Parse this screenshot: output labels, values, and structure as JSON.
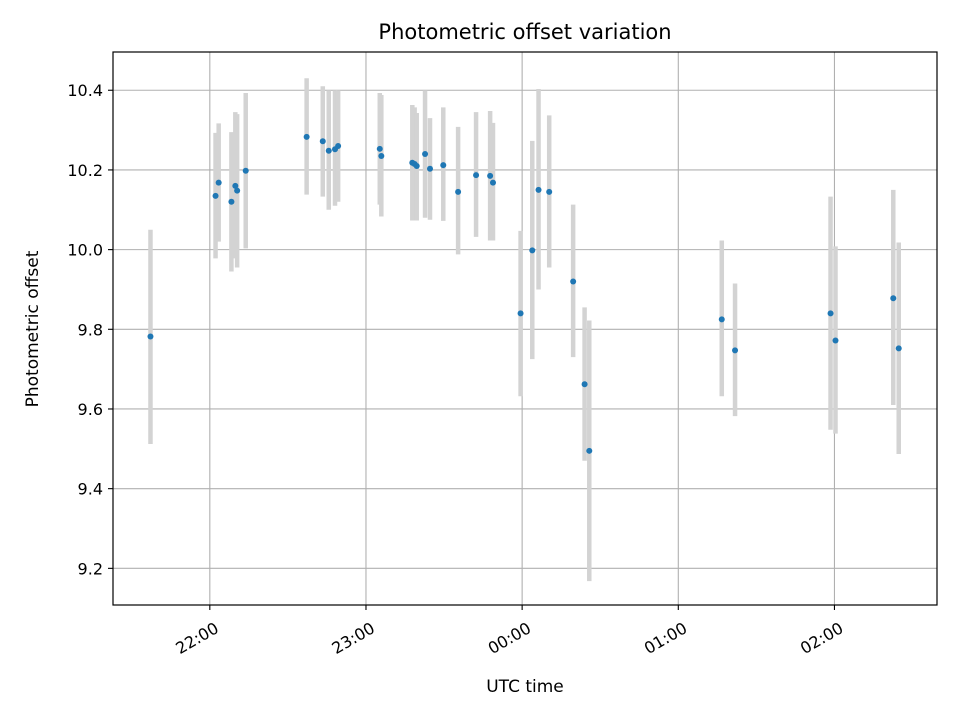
{
  "chart_data": {
    "type": "scatter",
    "title": "Photometric offset variation",
    "xlabel": "UTC time",
    "ylabel": "Photometric offset",
    "x_ticks": [
      {
        "t": 1320,
        "label": "22:00"
      },
      {
        "t": 1380,
        "label": "23:00"
      },
      {
        "t": 1440,
        "label": "00:00"
      },
      {
        "t": 1500,
        "label": "01:00"
      },
      {
        "t": 1560,
        "label": "02:00"
      }
    ],
    "y_ticks": [
      "9.2",
      "9.4",
      "9.6",
      "9.8",
      "10.0",
      "10.2",
      "10.4"
    ],
    "xlim": [
      1282.8,
      1599.4
    ],
    "ylim": [
      9.108,
      10.496
    ],
    "grid": true,
    "marker_color": "#1f77b4",
    "errorbar_color": "#d3d3d3",
    "points": [
      {
        "t": 1297.2,
        "y": 9.782,
        "ylo": 9.512,
        "yhi": 10.05
      },
      {
        "t": 1322.2,
        "y": 10.135,
        "ylo": 9.978,
        "yhi": 10.293
      },
      {
        "t": 1323.4,
        "y": 10.168,
        "ylo": 10.02,
        "yhi": 10.317
      },
      {
        "t": 1328.3,
        "y": 10.12,
        "ylo": 9.945,
        "yhi": 10.295
      },
      {
        "t": 1329.8,
        "y": 10.16,
        "ylo": 9.978,
        "yhi": 10.345
      },
      {
        "t": 1330.5,
        "y": 10.148,
        "ylo": 9.955,
        "yhi": 10.34
      },
      {
        "t": 1333.8,
        "y": 10.198,
        "ylo": 10.003,
        "yhi": 10.393
      },
      {
        "t": 1357.2,
        "y": 10.283,
        "ylo": 10.138,
        "yhi": 10.43
      },
      {
        "t": 1363.4,
        "y": 10.272,
        "ylo": 10.133,
        "yhi": 10.41
      },
      {
        "t": 1365.7,
        "y": 10.248,
        "ylo": 10.1,
        "yhi": 10.4
      },
      {
        "t": 1368.1,
        "y": 10.252,
        "ylo": 10.11,
        "yhi": 10.4
      },
      {
        "t": 1369.3,
        "y": 10.26,
        "ylo": 10.12,
        "yhi": 10.4
      },
      {
        "t": 1385.3,
        "y": 10.253,
        "ylo": 10.113,
        "yhi": 10.393
      },
      {
        "t": 1385.9,
        "y": 10.235,
        "ylo": 10.083,
        "yhi": 10.388
      },
      {
        "t": 1397.8,
        "y": 10.218,
        "ylo": 10.073,
        "yhi": 10.363
      },
      {
        "t": 1398.7,
        "y": 10.215,
        "ylo": 10.073,
        "yhi": 10.357
      },
      {
        "t": 1399.5,
        "y": 10.21,
        "ylo": 10.073,
        "yhi": 10.343
      },
      {
        "t": 1402.7,
        "y": 10.24,
        "ylo": 10.08,
        "yhi": 10.4
      },
      {
        "t": 1404.6,
        "y": 10.203,
        "ylo": 10.075,
        "yhi": 10.33
      },
      {
        "t": 1409.7,
        "y": 10.212,
        "ylo": 10.072,
        "yhi": 10.357
      },
      {
        "t": 1415.4,
        "y": 10.145,
        "ylo": 9.988,
        "yhi": 10.308
      },
      {
        "t": 1422.3,
        "y": 10.187,
        "ylo": 10.032,
        "yhi": 10.345
      },
      {
        "t": 1427.7,
        "y": 10.185,
        "ylo": 10.023,
        "yhi": 10.348
      },
      {
        "t": 1428.8,
        "y": 10.168,
        "ylo": 10.023,
        "yhi": 10.318
      },
      {
        "t": 1439.4,
        "y": 9.84,
        "ylo": 9.632,
        "yhi": 10.047
      },
      {
        "t": 1443.9,
        "y": 9.998,
        "ylo": 9.725,
        "yhi": 10.273
      },
      {
        "t": 1446.3,
        "y": 10.15,
        "ylo": 9.9,
        "yhi": 10.403
      },
      {
        "t": 1450.4,
        "y": 10.145,
        "ylo": 9.955,
        "yhi": 10.337
      },
      {
        "t": 1459.6,
        "y": 9.92,
        "ylo": 9.73,
        "yhi": 10.113
      },
      {
        "t": 1464.0,
        "y": 9.662,
        "ylo": 9.47,
        "yhi": 9.855
      },
      {
        "t": 1465.8,
        "y": 9.495,
        "ylo": 9.168,
        "yhi": 9.822
      },
      {
        "t": 1516.7,
        "y": 9.825,
        "ylo": 9.632,
        "yhi": 10.023
      },
      {
        "t": 1521.8,
        "y": 9.747,
        "ylo": 9.582,
        "yhi": 9.915
      },
      {
        "t": 1558.5,
        "y": 9.84,
        "ylo": 9.548,
        "yhi": 10.133
      },
      {
        "t": 1560.4,
        "y": 9.772,
        "ylo": 9.538,
        "yhi": 10.008
      },
      {
        "t": 1582.6,
        "y": 9.878,
        "ylo": 9.61,
        "yhi": 10.15
      },
      {
        "t": 1584.7,
        "y": 9.752,
        "ylo": 9.487,
        "yhi": 10.018
      }
    ]
  }
}
